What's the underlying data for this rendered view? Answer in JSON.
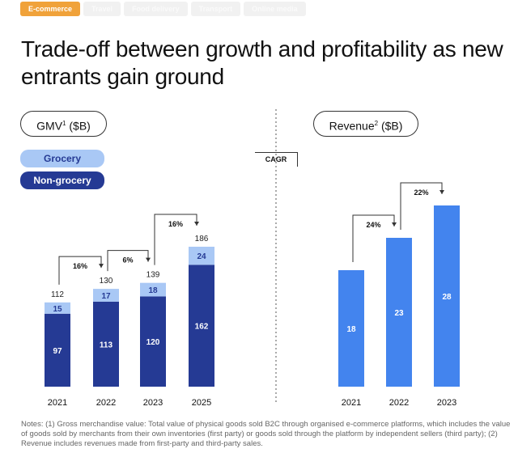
{
  "tabs": [
    "E-commerce",
    "Travel",
    "Food delivery",
    "Transport",
    "Online media"
  ],
  "title": "Trade-off between growth and profitability as new entrants gain ground",
  "colors": {
    "grocery": "#a9c8f5",
    "non_grocery": "#253a94",
    "revenue": "#4384ee",
    "accent": "#f0a23a"
  },
  "cagr_label": "CAGR",
  "chart_data": [
    {
      "type": "bar",
      "title": "GMV",
      "title_sup": "1",
      "unit": "($B)",
      "stacked": true,
      "categories": [
        "2021",
        "2022",
        "2023",
        "2025"
      ],
      "series": [
        {
          "name": "Non-grocery",
          "values": [
            97,
            113,
            120,
            162
          ]
        },
        {
          "name": "Grocery",
          "values": [
            15,
            17,
            18,
            24
          ]
        }
      ],
      "totals": [
        112,
        130,
        139,
        186
      ],
      "cagr": [
        {
          "from": 0,
          "to": 1,
          "label": "16%"
        },
        {
          "from": 1,
          "to": 2,
          "label": "6%"
        },
        {
          "from": 2,
          "to": 3,
          "label": "16%"
        }
      ],
      "legend": "top-left"
    },
    {
      "type": "bar",
      "title": "Revenue",
      "title_sup": "2",
      "unit": "($B)",
      "categories": [
        "2021",
        "2022",
        "2023"
      ],
      "values": [
        18,
        23,
        28
      ],
      "cagr": [
        {
          "from": 0,
          "to": 1,
          "label": "24%"
        },
        {
          "from": 1,
          "to": 2,
          "label": "22%"
        }
      ]
    }
  ],
  "notes": "Notes: (1) Gross merchandise value: Total value of physical goods sold B2C through organised e-commerce platforms, which includes the value of goods sold by merchants from their own inventories (first party) or goods sold through the platform by independent sellers (third party); (2) Revenue includes revenues made from first-party and third-party sales."
}
